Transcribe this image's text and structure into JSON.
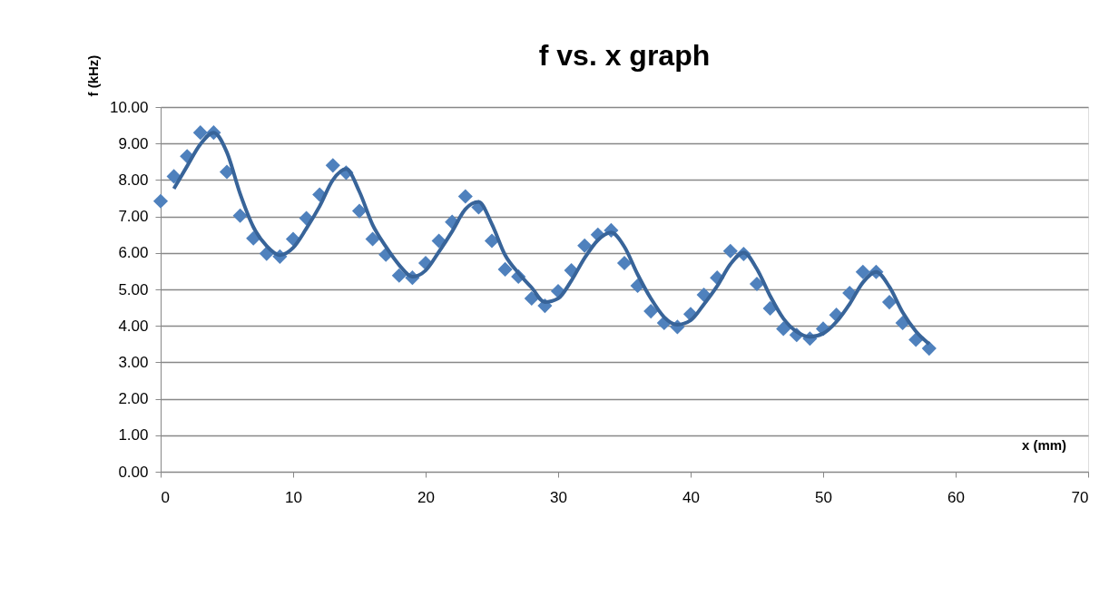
{
  "chart_data": {
    "type": "scatter",
    "title": "f vs. x graph",
    "xlabel": "x (mm)",
    "ylabel": "f (kHz)",
    "x": [
      0,
      1,
      2,
      3,
      4,
      5,
      6,
      7,
      8,
      9,
      10,
      11,
      12,
      13,
      14,
      15,
      16,
      17,
      18,
      19,
      20,
      21,
      22,
      23,
      24,
      25,
      26,
      27,
      28,
      29,
      30,
      31,
      32,
      33,
      34,
      35,
      36,
      37,
      38,
      39,
      40,
      41,
      42,
      43,
      44,
      45,
      46,
      47,
      48,
      49,
      50,
      51,
      52,
      53,
      54,
      55,
      56,
      57,
      58
    ],
    "series": [
      {
        "color": "#4f81bd",
        "marker": "diamond",
        "values": [
          7.42,
          8.1,
          8.65,
          9.3,
          9.3,
          8.22,
          7.02,
          6.4,
          5.98,
          5.9,
          6.38,
          6.95,
          7.6,
          8.4,
          8.2,
          7.15,
          6.38,
          5.95,
          5.38,
          5.32,
          5.72,
          6.33,
          6.85,
          7.55,
          7.25,
          6.33,
          5.55,
          5.35,
          4.75,
          4.55,
          4.95,
          5.52,
          6.2,
          6.5,
          6.62,
          5.72,
          5.1,
          4.4,
          4.08,
          3.97,
          4.32,
          4.85,
          5.32,
          6.05,
          5.97,
          5.15,
          4.48,
          3.92,
          3.75,
          3.65,
          3.92,
          4.3,
          4.9,
          5.48,
          5.48,
          4.65,
          4.08,
          3.62,
          3.38
        ]
      },
      {
        "type": "line",
        "color": "#386499",
        "marker": "none",
        "x": [
          1,
          2,
          3,
          4,
          5,
          6,
          7,
          8,
          9,
          10,
          11,
          12,
          13,
          14,
          15,
          16,
          17,
          18,
          19,
          20,
          21,
          22,
          23,
          24,
          25,
          26,
          27,
          28,
          29,
          30,
          31,
          32,
          33,
          34,
          35,
          36,
          37,
          38,
          39,
          40,
          41,
          42,
          43,
          44,
          45,
          46,
          47,
          48,
          49,
          50,
          51,
          52,
          53,
          54,
          55,
          56,
          57,
          58
        ],
        "values": [
          7.76,
          8.38,
          8.98,
          9.3,
          8.76,
          7.62,
          6.71,
          6.19,
          5.94,
          6.14,
          6.67,
          7.28,
          8.0,
          8.3,
          7.68,
          6.77,
          6.17,
          5.67,
          5.35,
          5.52,
          6.03,
          6.59,
          7.2,
          7.4,
          6.79,
          5.94,
          5.45,
          5.05,
          4.65,
          4.75,
          5.24,
          5.86,
          6.35,
          6.56,
          6.17,
          5.41,
          4.75,
          4.24,
          4.03,
          4.15,
          4.59,
          5.09,
          5.69,
          6.01,
          5.56,
          4.82,
          4.2,
          3.84,
          3.7,
          3.79,
          4.11,
          4.6,
          5.19,
          5.48,
          5.07,
          4.37,
          3.85,
          3.5
        ]
      }
    ],
    "line_style": "solid",
    "xlim": [
      0,
      70
    ],
    "xticks": [
      0,
      10,
      20,
      30,
      40,
      50,
      60,
      70
    ],
    "ylim": [
      0,
      10
    ],
    "yticks": [
      {
        "value": 0,
        "label": "0.00"
      },
      {
        "value": 1,
        "label": "1.00"
      },
      {
        "value": 2,
        "label": "2.00"
      },
      {
        "value": 3,
        "label": "3.00"
      },
      {
        "value": 4,
        "label": "4.00"
      },
      {
        "value": 5,
        "label": "5.00"
      },
      {
        "value": 6,
        "label": "6.00"
      },
      {
        "value": 7,
        "label": "7.00"
      },
      {
        "value": 8,
        "label": "8.00"
      },
      {
        "value": 9,
        "label": "9.00"
      },
      {
        "value": 10,
        "label": "10.00"
      }
    ],
    "grid": "y"
  }
}
